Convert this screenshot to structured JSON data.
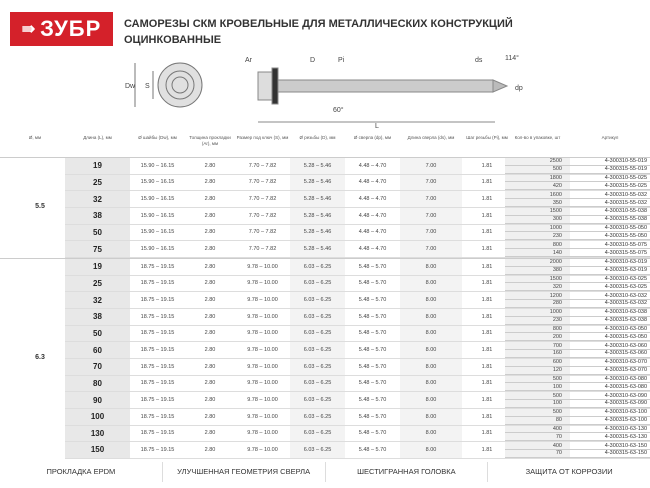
{
  "brand": {
    "logo": "ЗУБР",
    "color": "#d4212a"
  },
  "title": {
    "line1": "САМОРЕЗЫ СКМ КРОВЕЛЬНЫЕ ДЛЯ МЕТАЛЛИЧЕСКИХ КОНСТРУКЦИЙ",
    "line2": "ОЦИНКОВАННЫЕ"
  },
  "diagram": {
    "labels": [
      "Dw",
      "S",
      "Ar",
      "D",
      "Pi",
      "ds",
      "114°",
      "dp",
      "60°",
      "L"
    ]
  },
  "headers": [
    "Ø, мм",
    "Длина (L), мм",
    "Ø шайбы (Dw), мм",
    "Толщина прокладки (Ar), мм",
    "Размер под ключ (S), мм",
    "Ø резьбы (D), мм",
    "Ø сверла (dp), мм",
    "Длина сверла (ds), мм",
    "Шаг резьбы (Pi), мм",
    "Кол-во в упаковке, шт",
    "Артикул"
  ],
  "groups": [
    {
      "dia": "5.5",
      "dw": "15.90 – 16.15",
      "ar": "2.80",
      "s": "7.70 – 7.82",
      "d": "5.28 – 5.46",
      "dp": "4.48 – 4.70",
      "ds": "7.00",
      "pi": "1.81",
      "rows": [
        {
          "len": "19",
          "qty": [
            "2500",
            "500"
          ],
          "art": [
            "4-300310-55-019",
            "4-300315-55-019"
          ]
        },
        {
          "len": "25",
          "qty": [
            "1800",
            "420"
          ],
          "art": [
            "4-300310-55-025",
            "4-300315-55-025"
          ]
        },
        {
          "len": "32",
          "qty": [
            "1600",
            "350"
          ],
          "art": [
            "4-300310-55-032",
            "4-300315-55-032"
          ]
        },
        {
          "len": "38",
          "qty": [
            "1500",
            "300"
          ],
          "art": [
            "4-300310-55-038",
            "4-300315-55-038"
          ]
        },
        {
          "len": "50",
          "qty": [
            "1000",
            "230"
          ],
          "art": [
            "4-300310-55-050",
            "4-300315-55-050"
          ]
        },
        {
          "len": "75",
          "qty": [
            "800",
            "140"
          ],
          "art": [
            "4-300310-55-075",
            "4-300315-55-075"
          ]
        }
      ]
    },
    {
      "dia": "6.3",
      "dw": "18.75 – 19.15",
      "ar": "2.80",
      "s": "9.78 – 10.00",
      "d": "6.03 – 6.25",
      "dp": "5.48 – 5.70",
      "ds": "8.00",
      "pi": "1.81",
      "rows": [
        {
          "len": "19",
          "qty": [
            "2000",
            "380"
          ],
          "art": [
            "4-300310-63-019",
            "4-300315-63-019"
          ]
        },
        {
          "len": "25",
          "qty": [
            "1500",
            "320"
          ],
          "art": [
            "4-300310-63-025",
            "4-300315-63-025"
          ]
        },
        {
          "len": "32",
          "qty": [
            "1200",
            "280"
          ],
          "art": [
            "4-300310-63-032",
            "4-300315-63-032"
          ]
        },
        {
          "len": "38",
          "qty": [
            "1000",
            "230"
          ],
          "art": [
            "4-300310-63-038",
            "4-300315-63-038"
          ]
        },
        {
          "len": "50",
          "qty": [
            "800",
            "200"
          ],
          "art": [
            "4-300310-63-050",
            "4-300315-63-050"
          ]
        },
        {
          "len": "60",
          "qty": [
            "700",
            "160"
          ],
          "art": [
            "4-300310-63-060",
            "4-300315-63-060"
          ]
        },
        {
          "len": "70",
          "qty": [
            "600",
            "120"
          ],
          "art": [
            "4-300310-63-070",
            "4-300315-63-070"
          ]
        },
        {
          "len": "80",
          "qty": [
            "500",
            "100"
          ],
          "art": [
            "4-300310-63-080",
            "4-300315-63-080"
          ]
        },
        {
          "len": "90",
          "qty": [
            "500",
            "100"
          ],
          "art": [
            "4-300310-63-090",
            "4-300315-63-090"
          ]
        },
        {
          "len": "100",
          "qty": [
            "500",
            "80"
          ],
          "art": [
            "4-300310-63-100",
            "4-300315-63-100"
          ]
        },
        {
          "len": "130",
          "qty": [
            "400",
            "70"
          ],
          "art": [
            "4-300310-63-130",
            "4-300315-63-130"
          ]
        },
        {
          "len": "150",
          "qty": [
            "400",
            "70"
          ],
          "art": [
            "4-300310-63-150",
            "4-300315-63-150"
          ]
        }
      ]
    }
  ],
  "footer": [
    "ПРОКЛАДКА EPDM",
    "УЛУЧШЕННАЯ ГЕОМЕТРИЯ СВЕРЛА",
    "ШЕСТИГРАННАЯ ГОЛОВКА",
    "ЗАЩИТА ОТ КОРРОЗИИ"
  ]
}
